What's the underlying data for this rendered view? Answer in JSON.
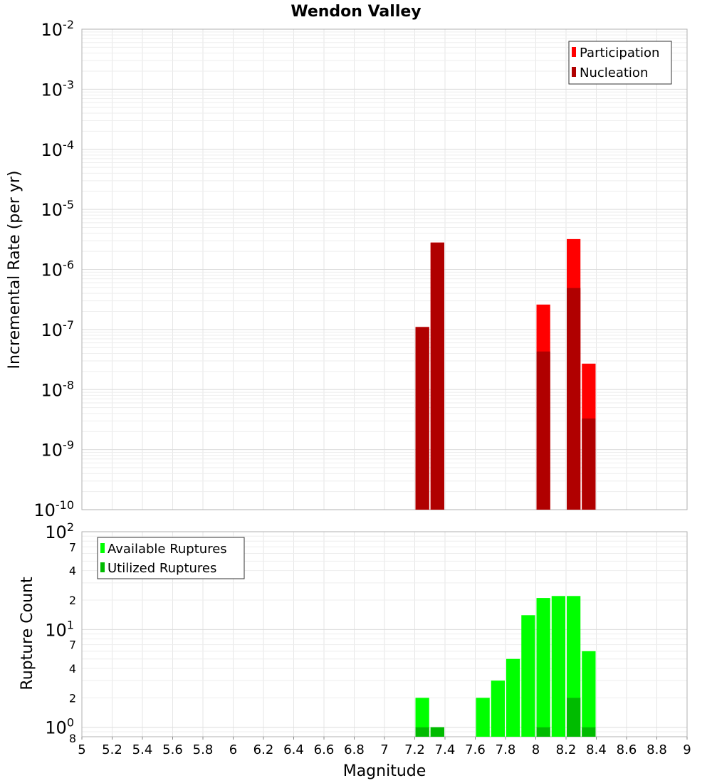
{
  "chart_data": [
    {
      "type": "bar",
      "title": "Wendon Valley",
      "ylabel": "Incremental Rate (per yr)",
      "yscale": "log",
      "ylim": [
        1e-10,
        0.01
      ],
      "xlim": [
        5,
        9
      ],
      "bin_width": 0.1,
      "y_ticks": [
        {
          "base": "10",
          "exp": "-10"
        },
        {
          "base": "10",
          "exp": "-9"
        },
        {
          "base": "10",
          "exp": "-8"
        },
        {
          "base": "10",
          "exp": "-7"
        },
        {
          "base": "10",
          "exp": "-6"
        },
        {
          "base": "10",
          "exp": "-5"
        },
        {
          "base": "10",
          "exp": "-4"
        },
        {
          "base": "10",
          "exp": "-3"
        },
        {
          "base": "10",
          "exp": "-2"
        }
      ],
      "legend_position": "top-right",
      "grid": true,
      "series": [
        {
          "name": "Participation",
          "color": "#ff0000",
          "x": [
            7.25,
            7.35,
            8.05,
            8.25,
            8.35
          ],
          "values": [
            1.1e-07,
            2.8e-06,
            2.6e-07,
            3.2e-06,
            2.7e-08
          ]
        },
        {
          "name": "Nucleation",
          "color": "#b00000",
          "x": [
            7.25,
            7.35,
            8.05,
            8.25,
            8.35
          ],
          "values": [
            1.1e-07,
            2.8e-06,
            4.3e-08,
            4.9e-07,
            3.3e-09
          ]
        }
      ]
    },
    {
      "type": "bar",
      "xlabel": "Magnitude",
      "ylabel": "Rupture Count",
      "yscale": "log",
      "ylim": [
        0.8,
        100
      ],
      "xlim": [
        5,
        9
      ],
      "bin_width": 0.1,
      "x_ticks": [
        "5",
        "5.2",
        "5.4",
        "5.6",
        "5.8",
        "6",
        "6.2",
        "6.4",
        "6.6",
        "6.8",
        "7",
        "7.2",
        "7.4",
        "7.6",
        "7.8",
        "8",
        "8.2",
        "8.4",
        "8.6",
        "8.8",
        "9"
      ],
      "y_major_ticks": [
        {
          "value": 1,
          "base": "10",
          "exp": "0"
        },
        {
          "value": 10,
          "base": "10",
          "exp": "1"
        },
        {
          "value": 100,
          "base": "10",
          "exp": "2"
        }
      ],
      "y_minor_tick_labels": [
        {
          "value": 0.8,
          "label": "8"
        },
        {
          "value": 2,
          "label": "2"
        },
        {
          "value": 4,
          "label": "4"
        },
        {
          "value": 7,
          "label": "7"
        },
        {
          "value": 20,
          "label": "2"
        },
        {
          "value": 40,
          "label": "4"
        },
        {
          "value": 70,
          "label": "7"
        }
      ],
      "legend_position": "top-left",
      "grid": true,
      "series": [
        {
          "name": "Available Ruptures",
          "color": "#00ff00",
          "x": [
            7.25,
            7.35,
            7.65,
            7.75,
            7.85,
            7.95,
            8.05,
            8.15,
            8.25,
            8.35
          ],
          "values": [
            2,
            1,
            2,
            3,
            5,
            14,
            21,
            22,
            22,
            6
          ]
        },
        {
          "name": "Utilized Ruptures",
          "color": "#00bb00",
          "x": [
            7.25,
            7.35,
            8.05,
            8.25,
            8.35
          ],
          "values": [
            1,
            1,
            1,
            2,
            1
          ]
        }
      ]
    }
  ]
}
